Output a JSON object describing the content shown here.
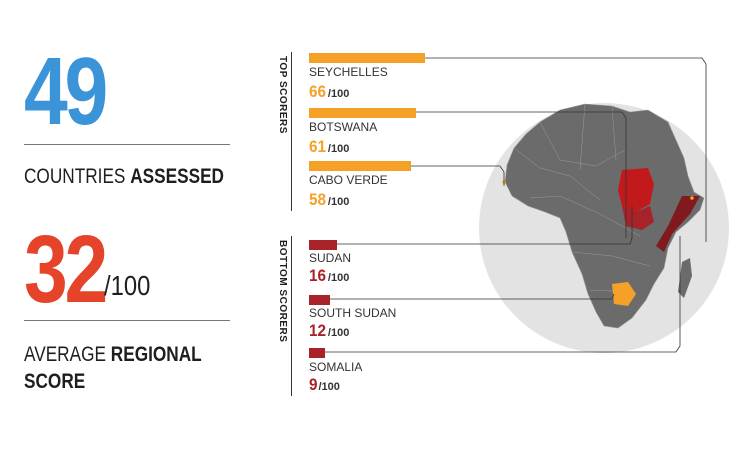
{
  "stats": {
    "countries_assessed": {
      "value": "49",
      "label_plain": "COUNTRIES ",
      "label_bold": "ASSESSED",
      "color": "#3b93d8"
    },
    "average": {
      "value": "32",
      "suffix": "/100",
      "label_plain": "AVERAGE ",
      "label_bold": "REGIONAL",
      "label_line2": "SCORE",
      "color": "#e5442a"
    }
  },
  "top_scorers_label": "TOP SCORERS",
  "bottom_scorers_label": "BOTTOM SCORERS",
  "score_max_label": "/100",
  "colors": {
    "top": "#f5a128",
    "bottom": "#a8222a",
    "somalia": "#801a1e",
    "sudan": "#c21a1c"
  },
  "chart_data": {
    "type": "bar",
    "orientation": "horizontal",
    "categories": [
      "SEYCHELLES",
      "BOTSWANA",
      "CABO VERDE",
      "SUDAN",
      "SOUTH SUDAN",
      "SOMALIA"
    ],
    "values": [
      66,
      61,
      58,
      16,
      12,
      9
    ],
    "groups": [
      "top",
      "top",
      "top",
      "bottom",
      "bottom",
      "bottom"
    ],
    "xlim": [
      0,
      100
    ],
    "value_labels": [
      "66",
      "61",
      "58",
      "16",
      "12",
      "9"
    ]
  }
}
